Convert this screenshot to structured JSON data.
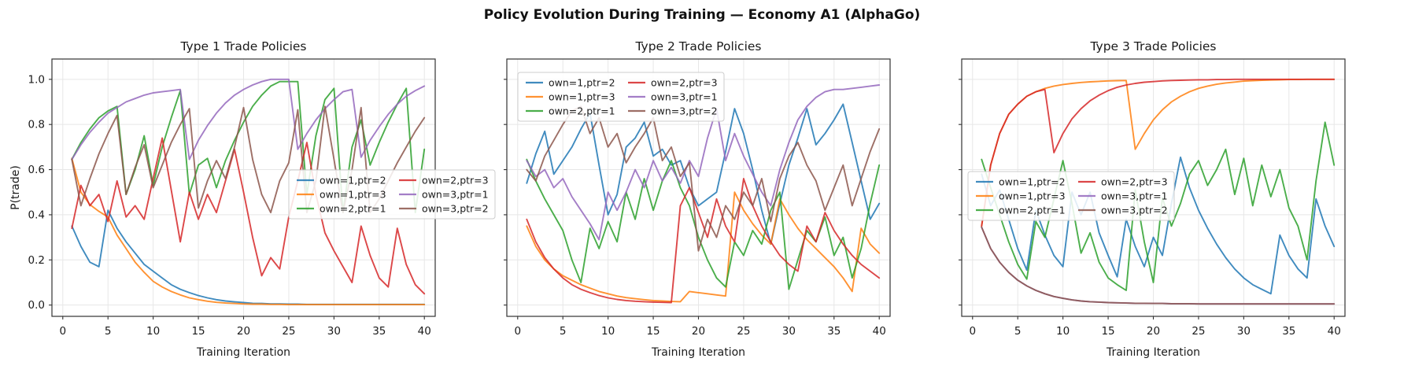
{
  "figure": {
    "title": "Policy Evolution During Training — Economy A1 (AlphaGo)"
  },
  "colors": {
    "blue": "#1f77b4",
    "orange": "#ff7f0e",
    "green": "#2ca02c",
    "red": "#d62728",
    "purple": "#9467bd",
    "brown": "#8c564b",
    "grid": "#e7e7e7",
    "spine": "#333333",
    "text": "#1a1a1a",
    "legend_border": "#cccccc",
    "legend_bg": "#ffffff"
  },
  "chart_data": [
    {
      "type": "line",
      "title": "Type 1 Trade Policies",
      "xlabel": "Training Iteration",
      "ylabel": "P(trade)",
      "show_y_tick_labels": true,
      "x_start": 1,
      "xlim": [
        -1.2,
        41.2
      ],
      "ylim": [
        -0.05,
        1.09
      ],
      "xticks": [
        0,
        5,
        10,
        15,
        20,
        25,
        30,
        35,
        40
      ],
      "yticks": [
        0.0,
        0.2,
        0.4,
        0.6,
        0.8,
        1.0
      ],
      "grid": true,
      "legend_position": "center right",
      "series": [
        {
          "name": "own=1,ptr=2",
          "color": "#1f77b4",
          "values": [
            0.35,
            0.26,
            0.19,
            0.17,
            0.42,
            0.34,
            0.28,
            0.23,
            0.18,
            0.15,
            0.12,
            0.09,
            0.07,
            0.055,
            0.042,
            0.032,
            0.024,
            0.018,
            0.014,
            0.011,
            0.008,
            0.007,
            0.005,
            0.005,
            0.004,
            0.004,
            0.003,
            0.003,
            0.003,
            0.003,
            0.003,
            0.003,
            0.003,
            0.003,
            0.003,
            0.003,
            0.003,
            0.003,
            0.003,
            0.003
          ]
        },
        {
          "name": "own=1,ptr=3",
          "color": "#ff7f0e",
          "values": [
            0.65,
            0.5,
            0.445,
            0.415,
            0.39,
            0.31,
            0.25,
            0.19,
            0.145,
            0.105,
            0.08,
            0.06,
            0.045,
            0.032,
            0.024,
            0.017,
            0.012,
            0.009,
            0.007,
            0.005,
            0.004,
            0.004,
            0.003,
            0.003,
            0.002,
            0.002,
            0.002,
            0.002,
            0.002,
            0.002,
            0.002,
            0.002,
            0.002,
            0.002,
            0.002,
            0.002,
            0.002,
            0.002,
            0.002,
            0.002
          ]
        },
        {
          "name": "own=2,ptr=1",
          "color": "#2ca02c",
          "values": [
            0.645,
            0.72,
            0.78,
            0.83,
            0.86,
            0.88,
            0.49,
            0.6,
            0.75,
            0.53,
            0.7,
            0.83,
            0.95,
            0.49,
            0.62,
            0.65,
            0.52,
            0.64,
            0.73,
            0.81,
            0.88,
            0.93,
            0.97,
            0.99,
            0.99,
            0.99,
            0.49,
            0.75,
            0.91,
            0.96,
            0.41,
            0.7,
            0.82,
            0.62,
            0.72,
            0.81,
            0.89,
            0.96,
            0.41,
            0.69
          ]
        },
        {
          "name": "own=2,ptr=3",
          "color": "#d62728",
          "values": [
            0.34,
            0.53,
            0.44,
            0.49,
            0.37,
            0.55,
            0.39,
            0.44,
            0.38,
            0.56,
            0.74,
            0.51,
            0.28,
            0.5,
            0.38,
            0.49,
            0.41,
            0.55,
            0.69,
            0.5,
            0.3,
            0.13,
            0.21,
            0.16,
            0.39,
            0.55,
            0.72,
            0.49,
            0.32,
            0.24,
            0.17,
            0.1,
            0.35,
            0.22,
            0.12,
            0.08,
            0.34,
            0.18,
            0.09,
            0.05
          ]
        },
        {
          "name": "own=3,ptr=1",
          "color": "#9467bd",
          "values": [
            0.645,
            0.71,
            0.765,
            0.81,
            0.85,
            0.875,
            0.9,
            0.915,
            0.93,
            0.94,
            0.945,
            0.95,
            0.955,
            0.645,
            0.73,
            0.795,
            0.85,
            0.895,
            0.93,
            0.955,
            0.975,
            0.99,
            1.0,
            1.0,
            1.0,
            0.69,
            0.76,
            0.82,
            0.87,
            0.91,
            0.945,
            0.955,
            0.655,
            0.73,
            0.79,
            0.845,
            0.89,
            0.925,
            0.95,
            0.97
          ]
        },
        {
          "name": "own=3,ptr=2",
          "color": "#8c564b",
          "values": [
            0.645,
            0.44,
            0.56,
            0.67,
            0.76,
            0.84,
            0.49,
            0.61,
            0.71,
            0.52,
            0.62,
            0.72,
            0.8,
            0.87,
            0.43,
            0.55,
            0.64,
            0.56,
            0.7,
            0.875,
            0.645,
            0.49,
            0.41,
            0.55,
            0.63,
            0.865,
            0.41,
            0.55,
            0.88,
            0.645,
            0.41,
            0.6,
            0.875,
            0.41,
            0.47,
            0.55,
            0.63,
            0.7,
            0.77,
            0.83
          ]
        }
      ]
    },
    {
      "type": "line",
      "title": "Type 2 Trade Policies",
      "xlabel": "Training Iteration",
      "ylabel": "",
      "show_y_tick_labels": false,
      "x_start": 1,
      "xlim": [
        -1.2,
        41.2
      ],
      "ylim": [
        -0.05,
        1.09
      ],
      "xticks": [
        0,
        5,
        10,
        15,
        20,
        25,
        30,
        35,
        40
      ],
      "yticks": [
        0.0,
        0.2,
        0.4,
        0.6,
        0.8,
        1.0
      ],
      "grid": true,
      "legend_position": "upper left",
      "series": [
        {
          "name": "own=1,ptr=2",
          "color": "#1f77b4",
          "values": [
            0.54,
            0.67,
            0.77,
            0.58,
            0.64,
            0.7,
            0.78,
            0.85,
            0.62,
            0.4,
            0.49,
            0.7,
            0.74,
            0.81,
            0.66,
            0.69,
            0.62,
            0.64,
            0.52,
            0.44,
            0.47,
            0.5,
            0.68,
            0.87,
            0.76,
            0.6,
            0.42,
            0.27,
            0.45,
            0.62,
            0.74,
            0.87,
            0.71,
            0.76,
            0.82,
            0.89,
            0.72,
            0.55,
            0.38,
            0.45
          ]
        },
        {
          "name": "own=1,ptr=3",
          "color": "#ff7f0e",
          "values": [
            0.35,
            0.26,
            0.2,
            0.16,
            0.13,
            0.11,
            0.09,
            0.075,
            0.06,
            0.05,
            0.04,
            0.033,
            0.028,
            0.024,
            0.02,
            0.018,
            0.016,
            0.015,
            0.06,
            0.055,
            0.05,
            0.045,
            0.04,
            0.5,
            0.42,
            0.36,
            0.31,
            0.27,
            0.47,
            0.4,
            0.34,
            0.29,
            0.25,
            0.21,
            0.17,
            0.12,
            0.06,
            0.34,
            0.27,
            0.23
          ]
        },
        {
          "name": "own=2,ptr=1",
          "color": "#2ca02c",
          "values": [
            0.645,
            0.55,
            0.47,
            0.4,
            0.33,
            0.2,
            0.1,
            0.34,
            0.25,
            0.37,
            0.28,
            0.5,
            0.38,
            0.56,
            0.42,
            0.55,
            0.64,
            0.52,
            0.44,
            0.3,
            0.2,
            0.12,
            0.08,
            0.28,
            0.22,
            0.33,
            0.27,
            0.42,
            0.5,
            0.07,
            0.2,
            0.33,
            0.28,
            0.39,
            0.22,
            0.3,
            0.12,
            0.25,
            0.45,
            0.62
          ]
        },
        {
          "name": "own=2,ptr=3",
          "color": "#d62728",
          "values": [
            0.38,
            0.28,
            0.21,
            0.16,
            0.12,
            0.09,
            0.07,
            0.055,
            0.042,
            0.032,
            0.025,
            0.02,
            0.017,
            0.015,
            0.013,
            0.012,
            0.011,
            0.44,
            0.52,
            0.41,
            0.3,
            0.47,
            0.35,
            0.28,
            0.56,
            0.44,
            0.35,
            0.28,
            0.22,
            0.18,
            0.15,
            0.35,
            0.28,
            0.41,
            0.33,
            0.27,
            0.22,
            0.18,
            0.15,
            0.12
          ]
        },
        {
          "name": "own=3,ptr=1",
          "color": "#9467bd",
          "values": [
            0.64,
            0.57,
            0.6,
            0.52,
            0.56,
            0.48,
            0.42,
            0.36,
            0.29,
            0.5,
            0.42,
            0.5,
            0.6,
            0.52,
            0.64,
            0.55,
            0.61,
            0.54,
            0.64,
            0.57,
            0.74,
            0.87,
            0.64,
            0.76,
            0.66,
            0.58,
            0.5,
            0.44,
            0.6,
            0.72,
            0.82,
            0.88,
            0.92,
            0.945,
            0.955,
            0.955,
            0.96,
            0.965,
            0.97,
            0.975
          ]
        },
        {
          "name": "own=3,ptr=2",
          "color": "#8c564b",
          "values": [
            0.6,
            0.55,
            0.66,
            0.73,
            0.8,
            0.86,
            0.88,
            0.76,
            0.83,
            0.7,
            0.76,
            0.63,
            0.7,
            0.76,
            0.83,
            0.64,
            0.7,
            0.57,
            0.63,
            0.24,
            0.38,
            0.3,
            0.44,
            0.38,
            0.5,
            0.44,
            0.56,
            0.37,
            0.56,
            0.66,
            0.72,
            0.62,
            0.55,
            0.42,
            0.52,
            0.62,
            0.44,
            0.56,
            0.68,
            0.78
          ]
        }
      ]
    },
    {
      "type": "line",
      "title": "Type 3 Trade Policies",
      "xlabel": "Training Iteration",
      "ylabel": "",
      "show_y_tick_labels": false,
      "x_start": 1,
      "xlim": [
        -1.2,
        41.2
      ],
      "ylim": [
        -0.05,
        1.09
      ],
      "xticks": [
        0,
        5,
        10,
        15,
        20,
        25,
        30,
        35,
        40
      ],
      "yticks": [
        0.0,
        0.2,
        0.4,
        0.6,
        0.8,
        1.0
      ],
      "grid": true,
      "legend_position": "center left",
      "series": [
        {
          "name": "own=1,ptr=2",
          "color": "#1f77b4",
          "values": [
            0.58,
            0.44,
            0.51,
            0.38,
            0.25,
            0.155,
            0.42,
            0.31,
            0.22,
            0.17,
            0.5,
            0.4,
            0.5,
            0.32,
            0.22,
            0.125,
            0.38,
            0.26,
            0.17,
            0.3,
            0.22,
            0.45,
            0.655,
            0.52,
            0.42,
            0.34,
            0.27,
            0.21,
            0.16,
            0.12,
            0.09,
            0.07,
            0.05,
            0.31,
            0.22,
            0.16,
            0.12,
            0.47,
            0.35,
            0.26
          ]
        },
        {
          "name": "own=1,ptr=3",
          "color": "#ff7f0e",
          "values": [
            0.35,
            0.62,
            0.76,
            0.845,
            0.89,
            0.925,
            0.945,
            0.96,
            0.97,
            0.977,
            0.982,
            0.986,
            0.989,
            0.991,
            0.993,
            0.994,
            0.995,
            0.69,
            0.76,
            0.82,
            0.865,
            0.9,
            0.925,
            0.945,
            0.96,
            0.97,
            0.978,
            0.984,
            0.988,
            0.992,
            0.994,
            0.996,
            0.997,
            0.998,
            0.999,
            0.999,
            1.0,
            1.0,
            1.0,
            1.0
          ]
        },
        {
          "name": "own=2,ptr=1",
          "color": "#2ca02c",
          "values": [
            0.645,
            0.52,
            0.4,
            0.28,
            0.18,
            0.115,
            0.37,
            0.3,
            0.47,
            0.64,
            0.45,
            0.23,
            0.32,
            0.19,
            0.12,
            0.09,
            0.065,
            0.51,
            0.28,
            0.1,
            0.475,
            0.35,
            0.45,
            0.58,
            0.64,
            0.53,
            0.6,
            0.69,
            0.49,
            0.65,
            0.44,
            0.62,
            0.48,
            0.6,
            0.43,
            0.35,
            0.2,
            0.55,
            0.81,
            0.62
          ]
        },
        {
          "name": "own=2,ptr=3",
          "color": "#d62728",
          "values": [
            0.35,
            0.62,
            0.76,
            0.845,
            0.89,
            0.925,
            0.945,
            0.955,
            0.675,
            0.76,
            0.825,
            0.87,
            0.905,
            0.93,
            0.95,
            0.965,
            0.975,
            0.982,
            0.987,
            0.99,
            0.993,
            0.995,
            0.996,
            0.997,
            0.998,
            0.998,
            0.999,
            0.999,
            1.0,
            1.0,
            1.0,
            1.0,
            1.0,
            1.0,
            1.0,
            1.0,
            1.0,
            1.0,
            1.0,
            1.0
          ]
        },
        {
          "name": "own=3,ptr=1",
          "color": "#9467bd",
          "values": [
            0.345,
            0.25,
            0.19,
            0.145,
            0.11,
            0.085,
            0.065,
            0.05,
            0.038,
            0.03,
            0.023,
            0.018,
            0.015,
            0.013,
            0.011,
            0.01,
            0.009,
            0.008,
            0.008,
            0.007,
            0.007,
            0.006,
            0.006,
            0.006,
            0.005,
            0.005,
            0.005,
            0.005,
            0.005,
            0.005,
            0.005,
            0.005,
            0.005,
            0.005,
            0.005,
            0.005,
            0.005,
            0.005,
            0.005,
            0.005
          ]
        },
        {
          "name": "own=3,ptr=2",
          "color": "#8c564b",
          "values": [
            0.345,
            0.25,
            0.19,
            0.145,
            0.11,
            0.085,
            0.065,
            0.05,
            0.038,
            0.03,
            0.023,
            0.018,
            0.015,
            0.013,
            0.011,
            0.01,
            0.009,
            0.008,
            0.008,
            0.007,
            0.007,
            0.006,
            0.006,
            0.006,
            0.005,
            0.005,
            0.005,
            0.005,
            0.005,
            0.005,
            0.005,
            0.005,
            0.005,
            0.005,
            0.005,
            0.005,
            0.005,
            0.005,
            0.005,
            0.005
          ]
        }
      ]
    }
  ]
}
